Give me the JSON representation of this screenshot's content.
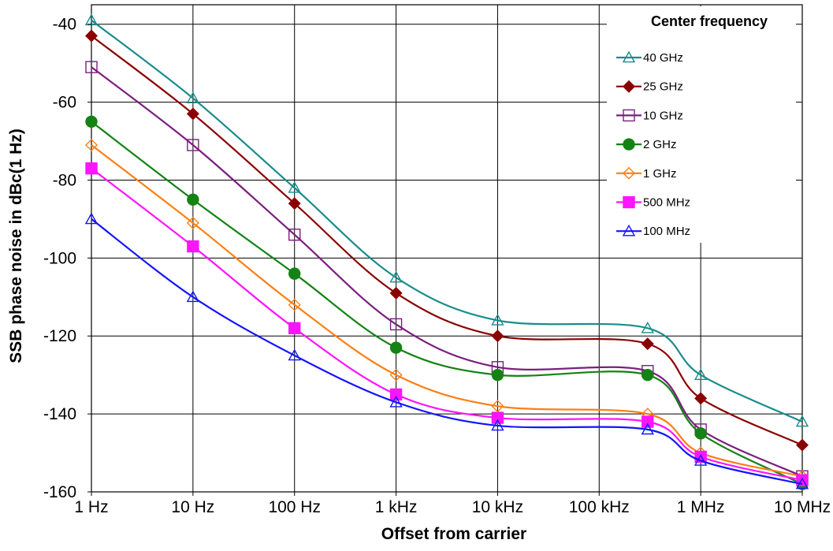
{
  "chart_data": {
    "type": "line",
    "title": "",
    "xlabel": "Offset from carrier",
    "ylabel": "SSB phase noise in dBc(1 Hz)",
    "x_scale": "log",
    "x_ticks": [
      {
        "value": 1,
        "label": "1 Hz"
      },
      {
        "value": 10,
        "label": "10 Hz"
      },
      {
        "value": 100,
        "label": "100 Hz"
      },
      {
        "value": 1000,
        "label": "1 kHz"
      },
      {
        "value": 10000,
        "label": "10 kHz"
      },
      {
        "value": 100000,
        "label": "100 kHz"
      },
      {
        "value": 1000000,
        "label": "1 MHz"
      },
      {
        "value": 10000000,
        "label": "10 MHz"
      }
    ],
    "xlim": [
      1,
      10000000
    ],
    "ylim": [
      -160,
      -35
    ],
    "y_ticks": [
      -160,
      -140,
      -120,
      -100,
      -80,
      -60,
      -40
    ],
    "grid": "vertical and horizontal major gridlines",
    "legend": {
      "title": "Center frequency",
      "placement": "top-right"
    },
    "series": [
      {
        "name": "40 GHz",
        "color": "#1a8c8c",
        "marker": "triangle-open",
        "x": [
          1,
          10,
          100,
          1000,
          10000,
          300000,
          1000000,
          10000000
        ],
        "y": [
          -39,
          -59,
          -82,
          -105,
          -116,
          -118,
          -130,
          -142
        ]
      },
      {
        "name": "25 GHz",
        "color": "#8b0000",
        "marker": "diamond-filled",
        "x": [
          1,
          10,
          100,
          1000,
          10000,
          300000,
          1000000,
          10000000
        ],
        "y": [
          -43,
          -63,
          -86,
          -109,
          -120,
          -122,
          -136,
          -148
        ]
      },
      {
        "name": "10 GHz",
        "color": "#7b1f7f",
        "marker": "square-open",
        "x": [
          1,
          10,
          100,
          1000,
          10000,
          300000,
          1000000,
          10000000
        ],
        "y": [
          -51,
          -71,
          -94,
          -117,
          -128,
          -129,
          -144,
          -156
        ]
      },
      {
        "name": "2 GHz",
        "color": "#148214",
        "marker": "circle-filled",
        "x": [
          1,
          10,
          100,
          1000,
          10000,
          300000,
          1000000,
          10000000
        ],
        "y": [
          -65,
          -85,
          -104,
          -123,
          -130,
          -130,
          -145,
          -158
        ]
      },
      {
        "name": "1 GHz",
        "color": "#ff7f14",
        "marker": "diamond-open",
        "x": [
          1,
          10,
          100,
          1000,
          10000,
          300000,
          1000000,
          10000000
        ],
        "y": [
          -71,
          -91,
          -112,
          -130,
          -138,
          -140,
          -150,
          -156
        ]
      },
      {
        "name": "500 MHz",
        "color": "#ff14ff",
        "marker": "square-filled",
        "x": [
          1,
          10,
          100,
          1000,
          10000,
          300000,
          1000000,
          10000000
        ],
        "y": [
          -77,
          -97,
          -118,
          -135,
          -141,
          -142,
          -151,
          -157
        ]
      },
      {
        "name": "100 MHz",
        "color": "#1414ff",
        "marker": "triangle-open",
        "x": [
          1,
          10,
          100,
          1000,
          10000,
          300000,
          1000000,
          10000000
        ],
        "y": [
          -90,
          -110,
          -125,
          -137,
          -143,
          -144,
          -152,
          -158
        ]
      }
    ]
  }
}
